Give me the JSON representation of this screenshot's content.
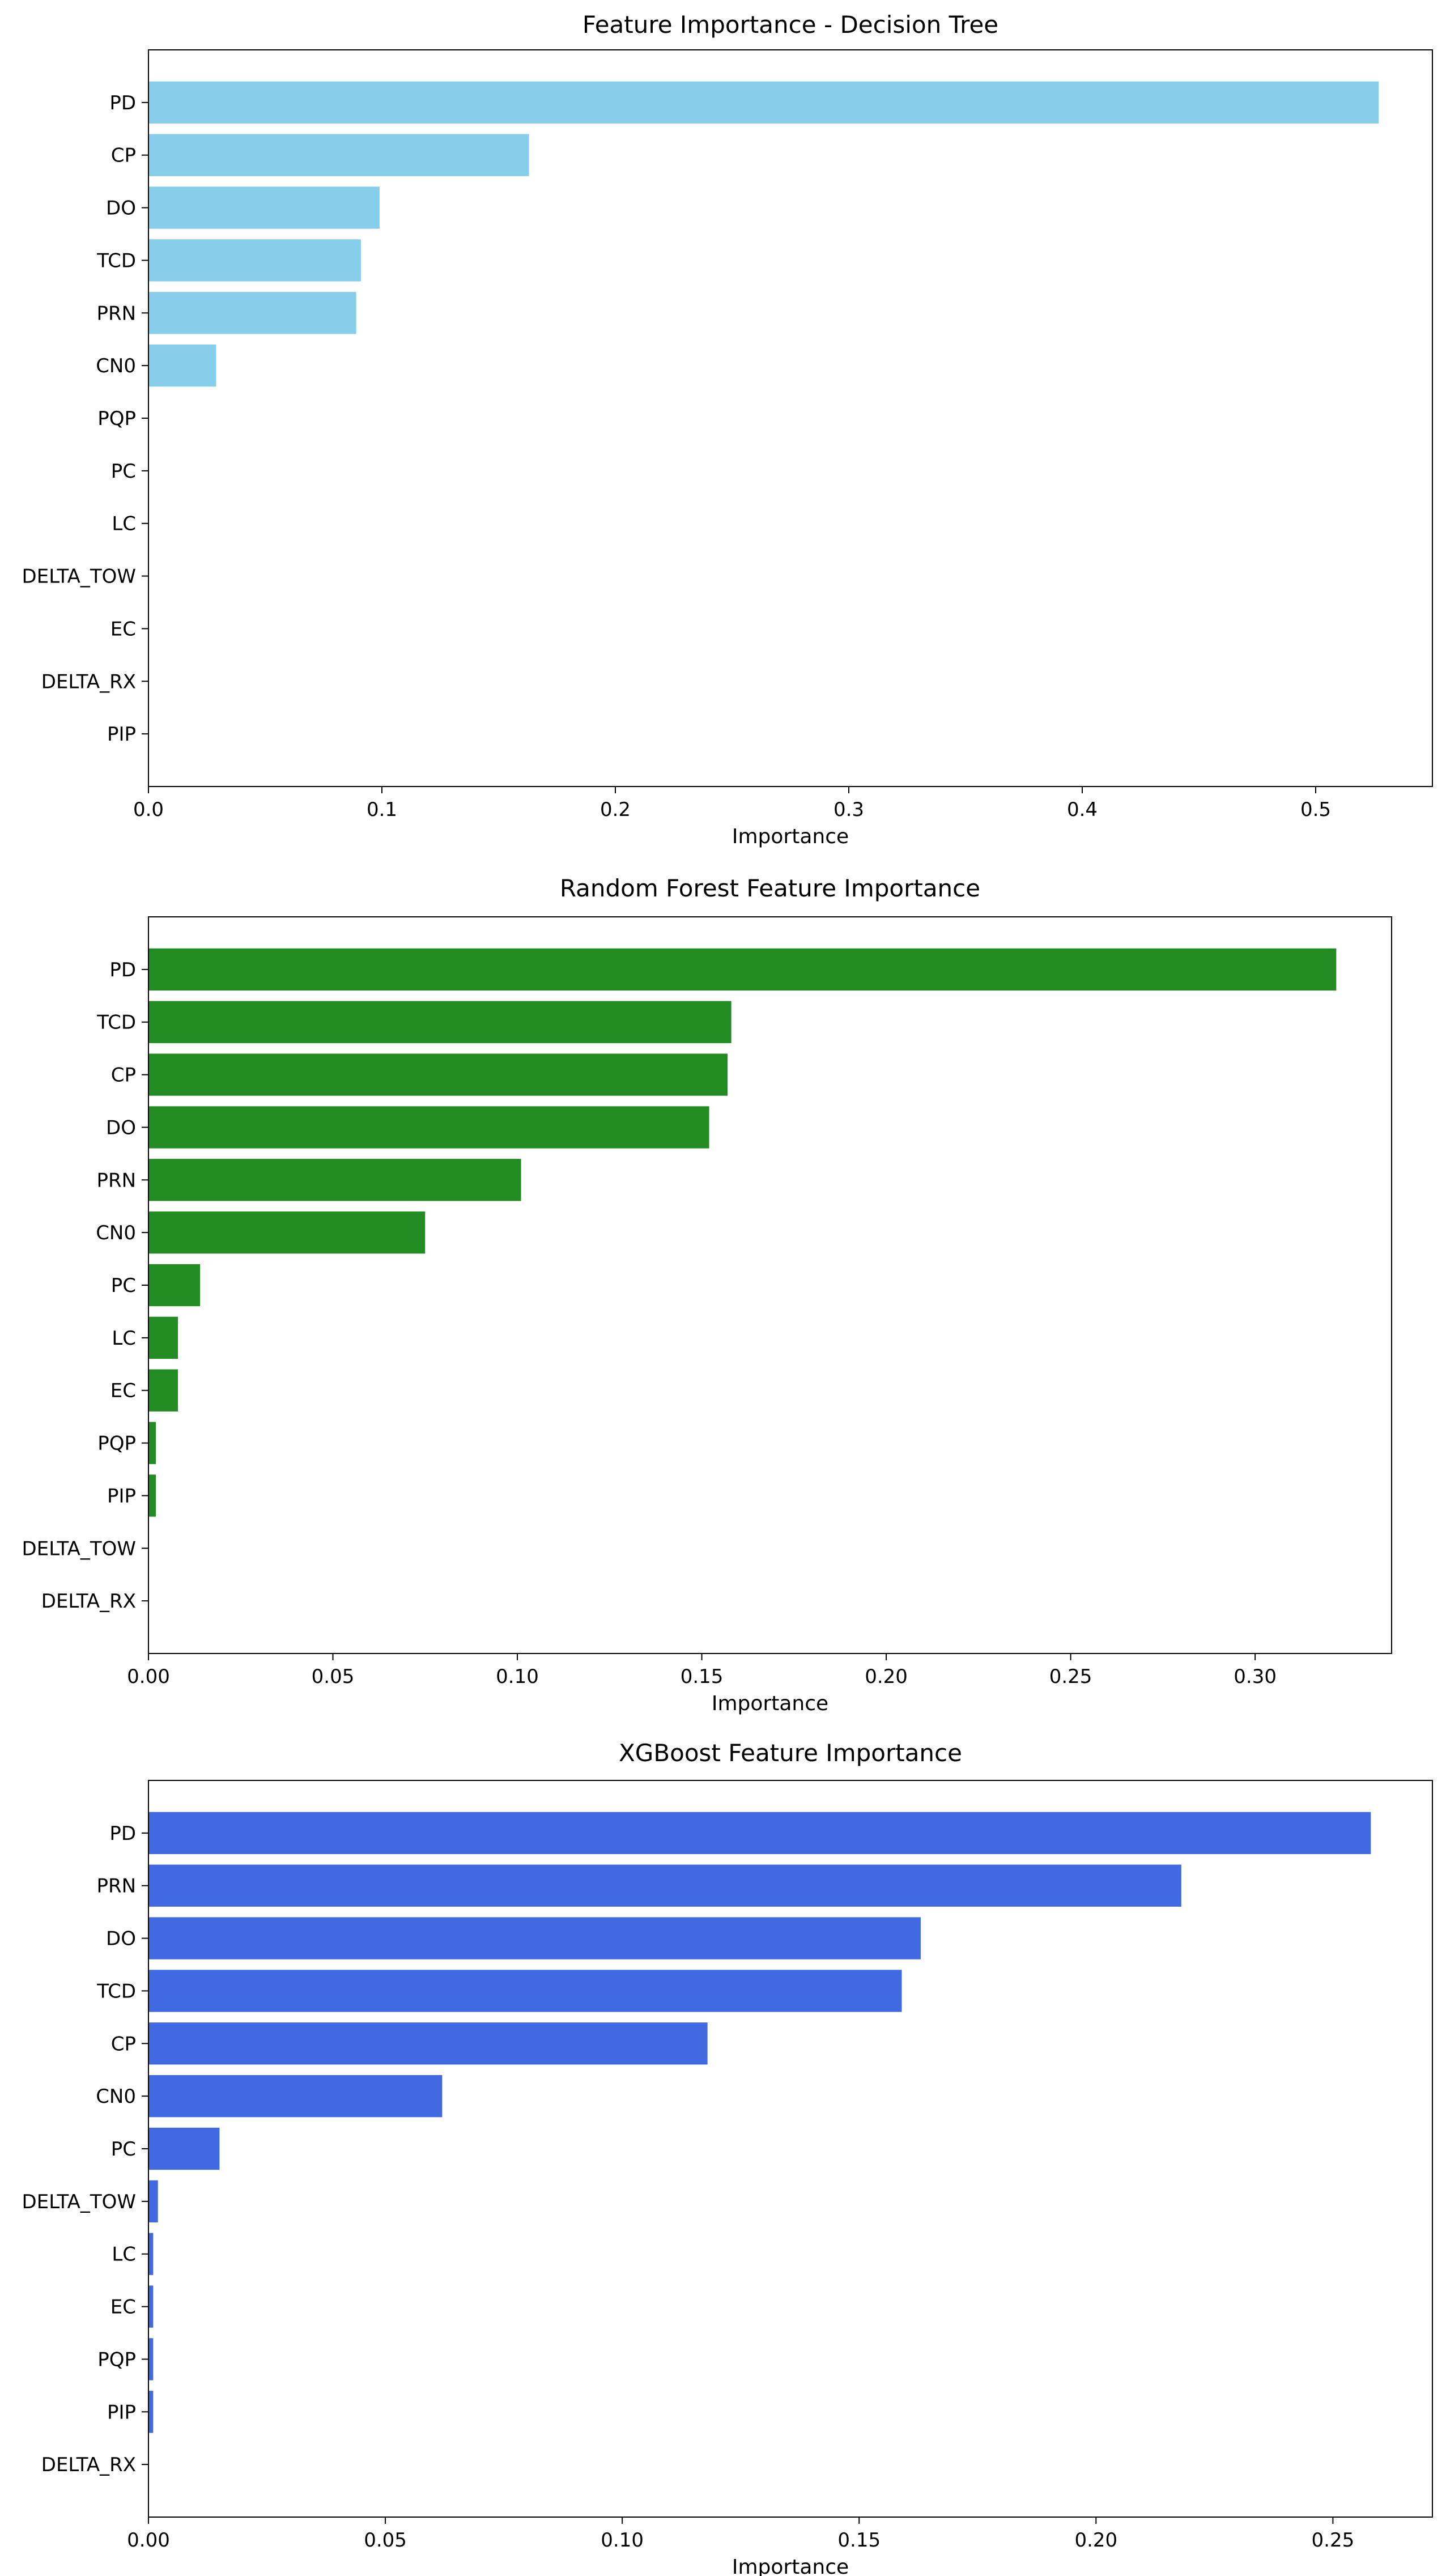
{
  "chart_data": [
    {
      "type": "bar",
      "orientation": "horizontal",
      "title": "Feature Importance - Decision Tree",
      "xlabel": "Importance",
      "ylabel": "",
      "color": "#87ceeb",
      "xlim": [
        0,
        0.55
      ],
      "xticks": [
        0.0,
        0.1,
        0.2,
        0.3,
        0.4,
        0.5
      ],
      "xtick_labels": [
        "0.0",
        "0.1",
        "0.2",
        "0.3",
        "0.4",
        "0.5"
      ],
      "grid": false,
      "categories": [
        "PD",
        "CP",
        "DO",
        "TCD",
        "PRN",
        "CN0",
        "PQP",
        "PC",
        "LC",
        "DELTA_TOW",
        "EC",
        "DELTA_RX",
        "PIP"
      ],
      "values": [
        0.527,
        0.163,
        0.099,
        0.091,
        0.089,
        0.029,
        0,
        0,
        0,
        0,
        0,
        0,
        0
      ]
    },
    {
      "type": "bar",
      "orientation": "horizontal",
      "title": "Random Forest Feature Importance",
      "xlabel": "Importance",
      "ylabel": "",
      "color": "#228b22",
      "xlim": [
        0,
        0.337
      ],
      "xticks": [
        0.0,
        0.05,
        0.1,
        0.15,
        0.2,
        0.25,
        0.3
      ],
      "xtick_labels": [
        "0.00",
        "0.05",
        "0.10",
        "0.15",
        "0.20",
        "0.25",
        "0.30"
      ],
      "grid": false,
      "categories": [
        "PD",
        "TCD",
        "CP",
        "DO",
        "PRN",
        "CN0",
        "PC",
        "LC",
        "EC",
        "PQP",
        "PIP",
        "DELTA_TOW",
        "DELTA_RX"
      ],
      "values": [
        0.322,
        0.158,
        0.157,
        0.152,
        0.101,
        0.075,
        0.014,
        0.008,
        0.008,
        0.002,
        0.002,
        0,
        0
      ]
    },
    {
      "type": "bar",
      "orientation": "horizontal",
      "title": "XGBoost Feature Importance",
      "xlabel": "Importance",
      "ylabel": "",
      "color": "#4169e1",
      "xlim": [
        0,
        0.271
      ],
      "xticks": [
        0.0,
        0.05,
        0.1,
        0.15,
        0.2,
        0.25
      ],
      "xtick_labels": [
        "0.00",
        "0.05",
        "0.10",
        "0.15",
        "0.20",
        "0.25"
      ],
      "grid": false,
      "categories": [
        "PD",
        "PRN",
        "DO",
        "TCD",
        "CP",
        "CN0",
        "PC",
        "DELTA_TOW",
        "LC",
        "EC",
        "PQP",
        "PIP",
        "DELTA_RX"
      ],
      "values": [
        0.258,
        0.218,
        0.163,
        0.159,
        0.118,
        0.062,
        0.015,
        0.002,
        0.001,
        0.001,
        0.001,
        0.001,
        0
      ]
    }
  ]
}
